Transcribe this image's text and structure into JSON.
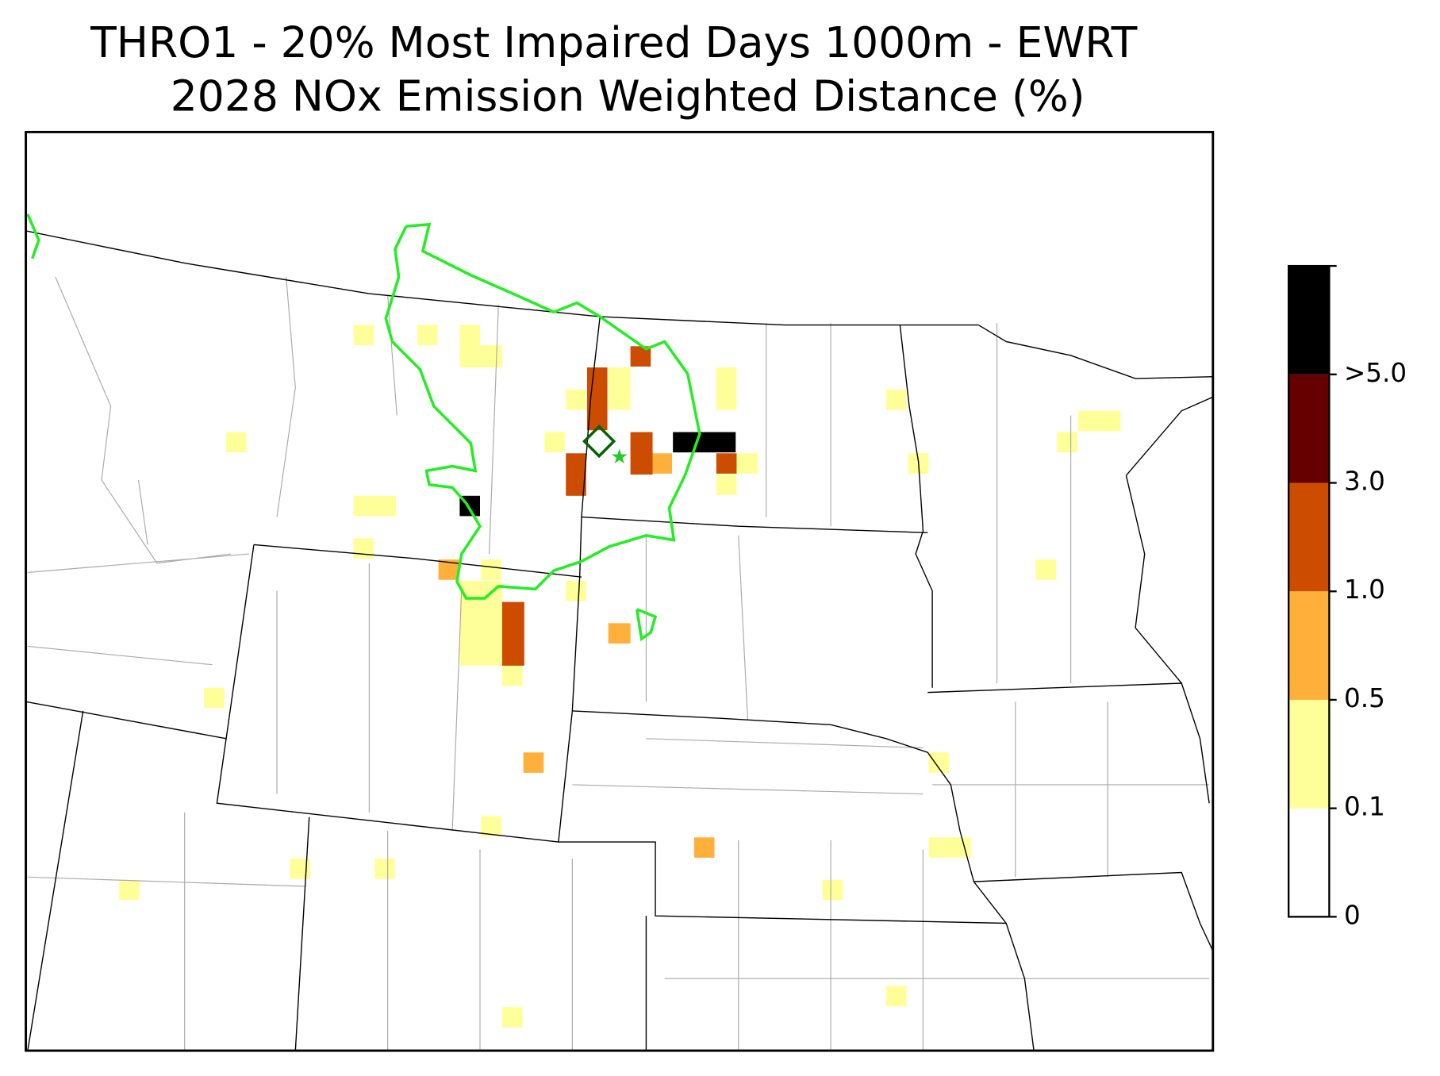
{
  "title": [
    "THRO1 - 20% Most Impaired Days 1000m - EWRT",
    "2028 NOx Emission Weighted Distance (%)"
  ],
  "colorbar": {
    "labels": [
      "0",
      "0.1",
      "0.5",
      "1.0",
      "3.0",
      ">5.0"
    ],
    "colors": [
      "#ffffff",
      "#ffff99",
      "#feb03a",
      "#cc4c02",
      "#660000",
      "#000000"
    ]
  }
}
